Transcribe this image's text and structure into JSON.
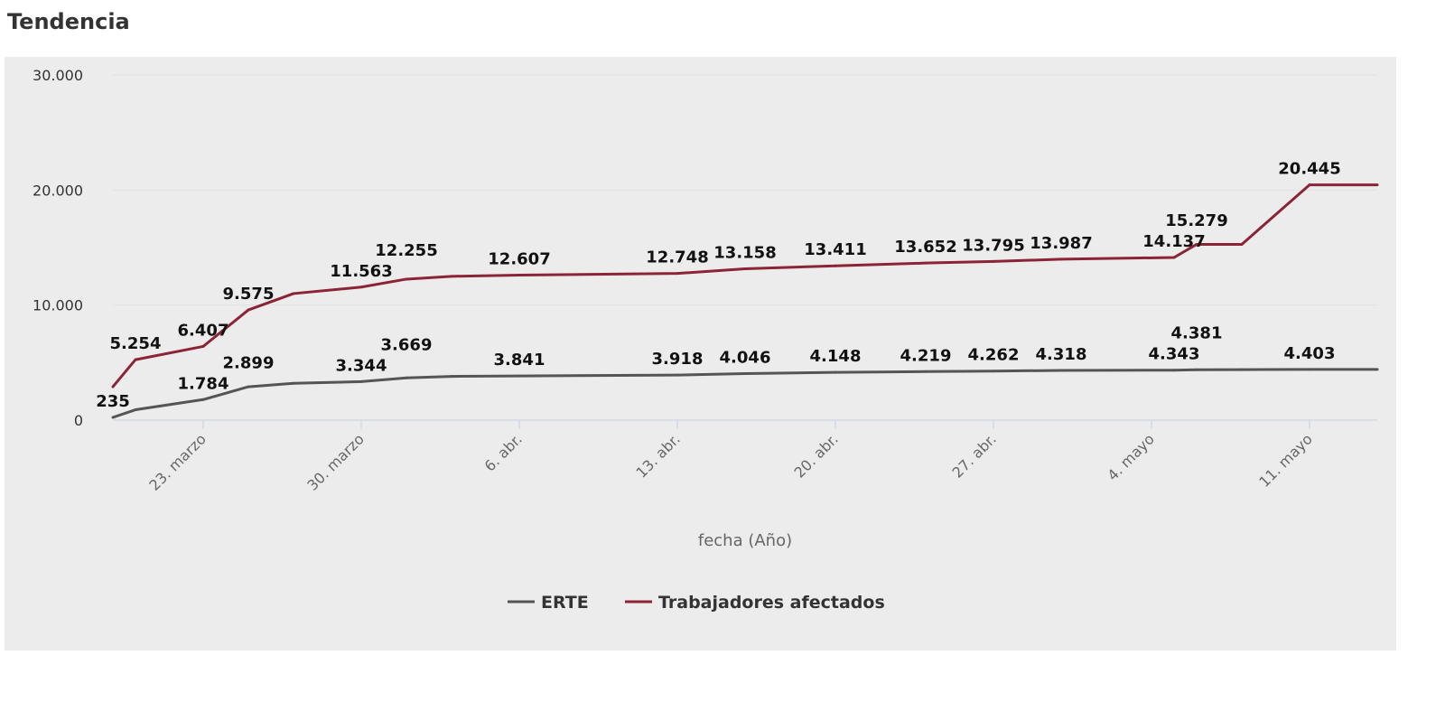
{
  "title": "Tendencia",
  "chart_data": {
    "type": "line",
    "xlabel": "fecha (Año)",
    "ylabel": "",
    "ylim": [
      0,
      30000
    ],
    "yticks": [
      0,
      10000,
      20000,
      30000
    ],
    "ytick_labels": [
      "0",
      "10.000",
      "20.000",
      "30.000"
    ],
    "xtick_labels": [
      "23. marzo",
      "30. marzo",
      "6. abr.",
      "13. abr.",
      "20. abr.",
      "27. abr.",
      "4. mayo",
      "11. mayo"
    ],
    "x": [
      "2020-03-19",
      "2020-03-20",
      "2020-03-23",
      "2020-03-25",
      "2020-03-27",
      "2020-03-30",
      "2020-04-01",
      "2020-04-03",
      "2020-04-06",
      "2020-04-13",
      "2020-04-16",
      "2020-04-20",
      "2020-04-24",
      "2020-04-27",
      "2020-04-30",
      "2020-05-05",
      "2020-05-06",
      "2020-05-08",
      "2020-05-11",
      "2020-05-14"
    ],
    "grid": true,
    "legend": "bottom",
    "series": [
      {
        "name": "ERTE",
        "color": "#555555",
        "values": [
          235,
          900,
          1784,
          2899,
          3200,
          3344,
          3669,
          3800,
          3841,
          3918,
          4046,
          4148,
          4219,
          4262,
          4318,
          4343,
          4381,
          4390,
          4403,
          4403
        ],
        "labels": [
          "235",
          "",
          "1.784",
          "2.899",
          "",
          "3.344",
          "3.669",
          "",
          "3.841",
          "3.918",
          "4.046",
          "4.148",
          "4.219",
          "4.262",
          "4.318",
          "4.343",
          "4.381",
          "",
          "4.403",
          ""
        ]
      },
      {
        "name": "Trabajadores afectados",
        "color": "#8b2535",
        "values": [
          2900,
          5254,
          6407,
          9575,
          11000,
          11563,
          12255,
          12500,
          12607,
          12748,
          13158,
          13411,
          13652,
          13795,
          13987,
          14137,
          15279,
          15279,
          20445,
          20445
        ],
        "labels": [
          "",
          "5.254",
          "6.407",
          "9.575",
          "",
          "11.563",
          "12.255",
          "",
          "12.607",
          "12.748",
          "13.158",
          "13.411",
          "13.652",
          "13.795",
          "13.987",
          "14.137",
          "15.279",
          "",
          "20.445",
          ""
        ]
      }
    ]
  }
}
